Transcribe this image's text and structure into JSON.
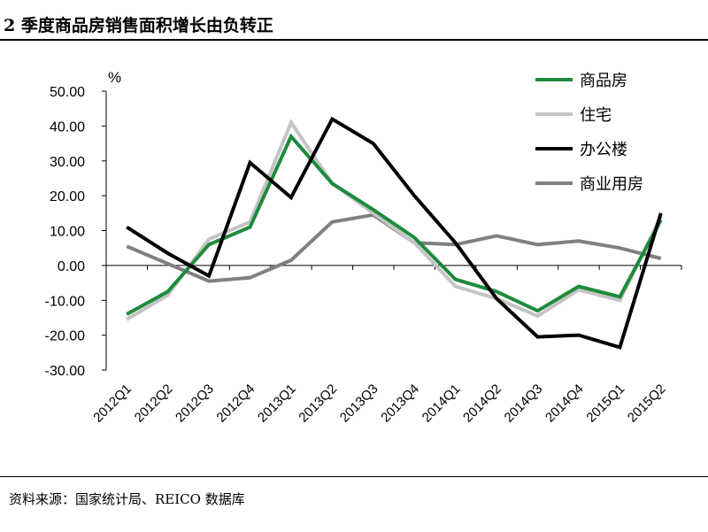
{
  "header": {
    "title": "2 季度商品房销售面积增长由负转正"
  },
  "footer": {
    "source": "资料来源：国家统计局、REICO 数据库"
  },
  "chart_data": {
    "type": "line",
    "ylabel": "%",
    "ylim": [
      -30,
      50
    ],
    "yticks": [
      "50.00",
      "40.00",
      "30.00",
      "20.00",
      "10.00",
      "0.00",
      "-10.00",
      "-20.00",
      "-30.00"
    ],
    "categories": [
      "2012Q1",
      "2012Q2",
      "2012Q3",
      "2012Q4",
      "2013Q1",
      "2013Q2",
      "2013Q3",
      "2013Q4",
      "2014Q1",
      "2014Q2",
      "2014Q3",
      "2014Q4",
      "2015Q1",
      "2015Q2"
    ],
    "legend_position": "top-right",
    "series": [
      {
        "name": "商品房",
        "color": "#1e8b3c",
        "values": [
          -14,
          -7.5,
          6,
          11,
          37,
          23.5,
          16,
          8,
          -4,
          -7.5,
          -13,
          -6,
          -9,
          13
        ]
      },
      {
        "name": "住宅",
        "color": "#c4c4c4",
        "values": [
          -15.5,
          -8.5,
          7.5,
          12.5,
          41,
          23.5,
          15,
          6.5,
          -6,
          -9.5,
          -14.5,
          -7,
          -10,
          14
        ]
      },
      {
        "name": "办公楼",
        "color": "#000000",
        "values": [
          11,
          3.5,
          -3,
          29.5,
          19.5,
          42,
          35,
          20,
          6.5,
          -9.5,
          -20.5,
          -20,
          -23.5,
          15
        ]
      },
      {
        "name": "商业用房",
        "color": "#808080",
        "values": [
          5.5,
          0.5,
          -4.5,
          -3.5,
          1.5,
          12.5,
          14.5,
          6.5,
          6,
          8.5,
          6,
          7,
          5,
          2
        ]
      }
    ]
  }
}
